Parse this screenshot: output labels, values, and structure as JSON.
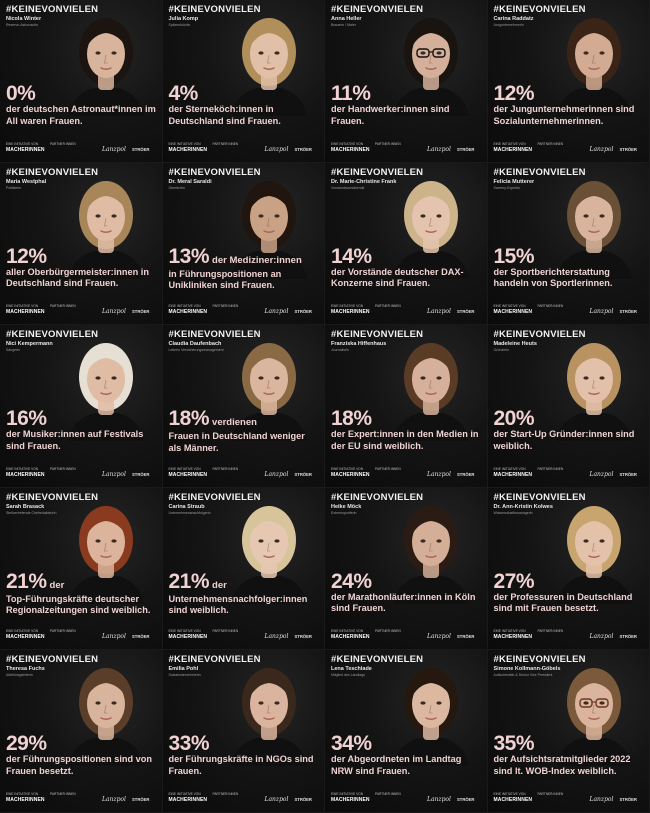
{
  "hashtag": "#KEINEVONVIELEN",
  "footer": {
    "initiative_label": "EINE INITIATIVE VON",
    "partners_label": "PARTNER:INNEN",
    "brand": "MACHERINNEN",
    "partner_logos": [
      "",
      "",
      "Lanzpol",
      "STRÖER"
    ]
  },
  "tiles": [
    {
      "name": "Nicola Winter",
      "role": "Reserve-Astronautin",
      "percent": "0%",
      "lead": "",
      "desc": "der deutschen Astronaut*innen im All waren Frauen.",
      "hair": "#1c1410",
      "skin": "#d8b49c"
    },
    {
      "name": "Julia Komp",
      "role": "Spitzenköchin",
      "percent": "4%",
      "lead": "",
      "desc": "der Sterneköch:innen in Deutschland sind Frauen.",
      "hair": "#b08f5a",
      "skin": "#e2c0a8"
    },
    {
      "name": "Anna Heller",
      "role": "Brauerin / Maler",
      "percent": "11%",
      "lead": "",
      "desc": "der Handwerker:innen sind Frauen.",
      "hair": "#1a1410",
      "skin": "#d4b09a"
    },
    {
      "name": "Carina Raddatz",
      "role": "Jungunternehmerin",
      "percent": "12%",
      "lead": "",
      "desc": "der Jungunternehmerinnen sind Sozialunternehmerinnen.",
      "hair": "#3a2418",
      "skin": "#d2ab92"
    },
    {
      "name": "Maria Westphal",
      "role": "Politikerin",
      "percent": "12%",
      "lead": "",
      "desc": "aller Oberbürgermeister:innen in Deutschland sind Frauen.",
      "hair": "#a8865a",
      "skin": "#e0bca4"
    },
    {
      "name": "Dr. Meral Saraldi",
      "role": "Oberärztin",
      "percent": "13%",
      "lead": "der Mediziner:innen",
      "desc": "in Führungspositionen an Unikliniken sind Frauen.",
      "hair": "#20160f",
      "skin": "#c9a286"
    },
    {
      "name": "Dr. Marie-Christine Frank",
      "role": "Vorstandsvorsitzende",
      "percent": "14%",
      "lead": "",
      "desc": "der Vorstände deutscher DAX-Konzerne sind Frauen.",
      "hair": "#cdb38a",
      "skin": "#e4c4ae"
    },
    {
      "name": "Felicia Mutterer",
      "role": "Sweeny-Expertin",
      "percent": "15%",
      "lead": "",
      "desc": "der Sportberichterstattung handeln von Sportlerinnen.",
      "hair": "#6a5036",
      "skin": "#d8b49c"
    },
    {
      "name": "Nici Kempermann",
      "role": "Sängerin",
      "percent": "16%",
      "lead": "",
      "desc": "der Musiker:innen auf Festivals sind Frauen.",
      "hair": "#e6e0d4",
      "skin": "#e0bca4"
    },
    {
      "name": "Claudia Daufenbach",
      "role": "Leiterin Versicherungsmanagement",
      "percent": "18%",
      "lead": "verdienen",
      "desc": "Frauen in Deutschland weniger als Männer.",
      "hair": "#8a6a44",
      "skin": "#dab69e"
    },
    {
      "name": "Franziska Hiffenhaus",
      "role": "Journalistin",
      "percent": "18%",
      "lead": "",
      "desc": "der Expert:innen in den Medien in der EU sind weiblich.",
      "hair": "#5a3c26",
      "skin": "#d6b09a"
    },
    {
      "name": "Madeleine Heuts",
      "role": "Gründerin",
      "percent": "20%",
      "lead": "",
      "desc": "der Start-Up Gründer:innen sind weiblich.",
      "hair": "#b89260",
      "skin": "#e2c0aa"
    },
    {
      "name": "Sarah Brasack",
      "role": "Stellvertretende Chefredakteurin",
      "percent": "21%",
      "lead": "der",
      "desc": "Top-Führungskräfte deutscher Regionalzeitungen sind weiblich.",
      "hair": "#8a3a1e",
      "skin": "#dcb49c"
    },
    {
      "name": "Carina Straub",
      "role": "Unternehmensnachfolgerin",
      "percent": "21%",
      "lead": "der",
      "desc": "Unternehmensnachfolger:innen sind weiblich.",
      "hair": "#d8c49a",
      "skin": "#e6c8b2"
    },
    {
      "name": "Heike Möck",
      "role": "Extremsportlerin",
      "percent": "24%",
      "lead": "",
      "desc": "der Marathonläufer:innen in Köln sind Frauen.",
      "hair": "#2a1c14",
      "skin": "#d4ae96"
    },
    {
      "name": "Dr. Ann-Kristin Kolwes",
      "role": "Wissenschaftsmanagerin",
      "percent": "27%",
      "lead": "",
      "desc": "der Professuren in Deutschland sind mit Frauen besetzt.",
      "hair": "#c8a46e",
      "skin": "#e4c2aa"
    },
    {
      "name": "Theresa Fuchs",
      "role": "Abteilungsleiterin",
      "percent": "29%",
      "lead": "",
      "desc": "der Führungspositionen sind von Frauen besetzt.",
      "hair": "#5a3e2a",
      "skin": "#d8b49c"
    },
    {
      "name": "Emilia Pohl",
      "role": "Sozialunternehmerin",
      "percent": "33%",
      "lead": "",
      "desc": "der Führungskräfte in NGOs sind Frauen.",
      "hair": "#3a281c",
      "skin": "#dab49e"
    },
    {
      "name": "Lena Teschlade",
      "role": "Mitglied des Landtags",
      "percent": "34%",
      "lead": "",
      "desc": "der Abgeordneten im Landtag NRW sind Frauen.",
      "hair": "#24180f",
      "skin": "#dcb8a0"
    },
    {
      "name": "Simone Kollmann-Göbels",
      "role": "Aufsichtsrätin & Senior Vice President",
      "percent": "35%",
      "lead": "",
      "desc": "der Aufsichtsratmitglieder 2022 sind lt. WOB-Index weiblich.",
      "hair": "#7a5a3a",
      "skin": "#dab49c"
    }
  ]
}
